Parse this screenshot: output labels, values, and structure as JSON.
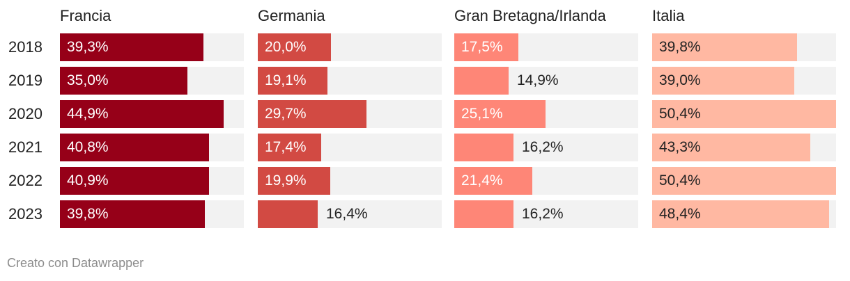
{
  "chart_data": {
    "type": "bar",
    "orientation": "horizontal",
    "layout": "small-multiples",
    "categories": [
      "2018",
      "2019",
      "2020",
      "2021",
      "2022",
      "2023"
    ],
    "xlim": [
      0,
      50.4
    ],
    "series": [
      {
        "name": "Francia",
        "color": "#960018",
        "label_color": "#ffffff",
        "values": [
          39.3,
          35.0,
          44.9,
          40.8,
          40.9,
          39.8
        ],
        "labels": [
          "39,3%",
          "35,0%",
          "44,9%",
          "40,8%",
          "40,9%",
          "39,8%"
        ]
      },
      {
        "name": "Germania",
        "color": "#d24a43",
        "label_color": "#ffffff",
        "values": [
          20.0,
          19.1,
          29.7,
          17.4,
          19.9,
          16.4
        ],
        "labels": [
          "20,0%",
          "19,1%",
          "29,7%",
          "17,4%",
          "19,9%",
          "16,4%"
        ]
      },
      {
        "name": "Gran Bretagna/Irlanda",
        "color": "#fe8677",
        "label_color": "#ffffff",
        "values": [
          17.5,
          14.9,
          25.1,
          16.2,
          21.4,
          16.2
        ],
        "labels": [
          "17,5%",
          "14,9%",
          "25,1%",
          "16,2%",
          "21,4%",
          "16,2%"
        ]
      },
      {
        "name": "Italia",
        "color": "#ffb8a2",
        "label_color": "#222222",
        "values": [
          39.8,
          39.0,
          50.4,
          43.3,
          50.4,
          48.4
        ],
        "labels": [
          "39,8%",
          "39,0%",
          "50,4%",
          "43,3%",
          "50,4%",
          "48,4%"
        ]
      }
    ]
  },
  "footer": "Creato con Datawrapper"
}
